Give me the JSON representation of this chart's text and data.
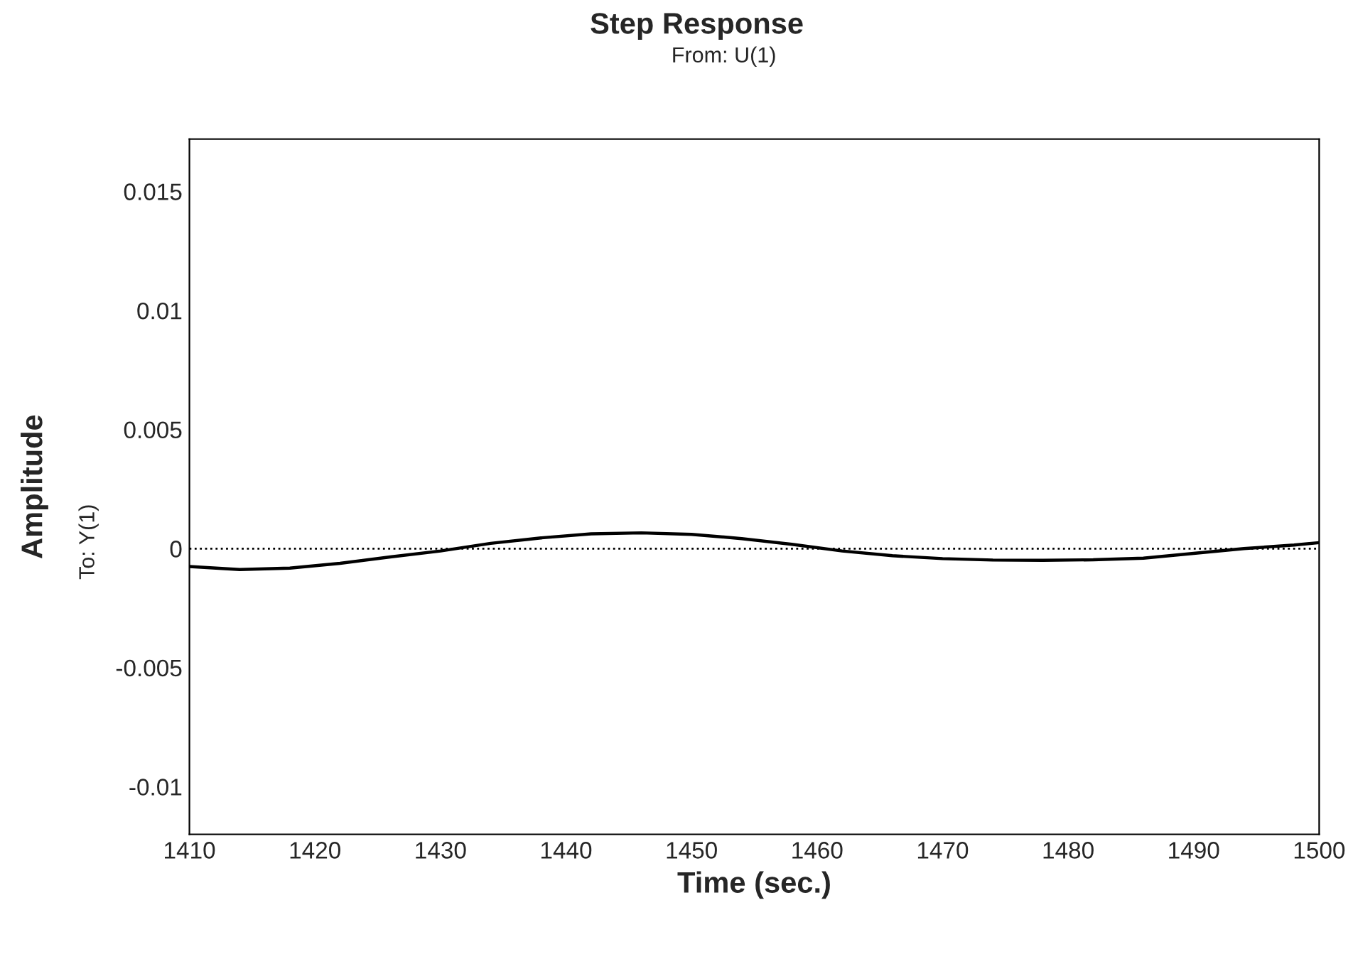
{
  "chart_data": {
    "type": "line",
    "title": "Step Response",
    "subtitle": "From: U(1)",
    "xlabel": "Time (sec.)",
    "ylabel": "Amplitude",
    "annotations": [
      "To: Y(1)"
    ],
    "x": [
      1410,
      1414,
      1418,
      1422,
      1426,
      1430,
      1434,
      1438,
      1442,
      1446,
      1450,
      1454,
      1458,
      1462,
      1466,
      1470,
      1474,
      1478,
      1482,
      1486,
      1490,
      1494,
      1498,
      1500
    ],
    "series": [
      {
        "color": "#000000",
        "values": [
          -0.00075,
          -0.00088,
          -0.00082,
          -0.00062,
          -0.00035,
          -0.0001,
          0.00022,
          0.00045,
          0.00062,
          0.00066,
          0.0006,
          0.00042,
          0.00018,
          -0.0001,
          -0.0003,
          -0.00042,
          -0.00048,
          -0.00049,
          -0.00047,
          -0.0004,
          -0.0002,
          0.0,
          0.00015,
          0.00025
        ]
      }
    ],
    "xlim": [
      1410,
      1500
    ],
    "xticks": [
      1410,
      1420,
      1430,
      1440,
      1450,
      1460,
      1470,
      1480,
      1490,
      1500
    ],
    "ylim": [
      -0.012,
      0.0172
    ],
    "yticks": [
      -0.01,
      -0.005,
      0,
      0.005,
      0.01,
      0.015
    ],
    "ref_lines": [
      {
        "axis": "y",
        "value": 0,
        "color": "#000000",
        "line_style": "dotted"
      }
    ],
    "grid": false,
    "marker": "none",
    "line_style": "solid"
  }
}
